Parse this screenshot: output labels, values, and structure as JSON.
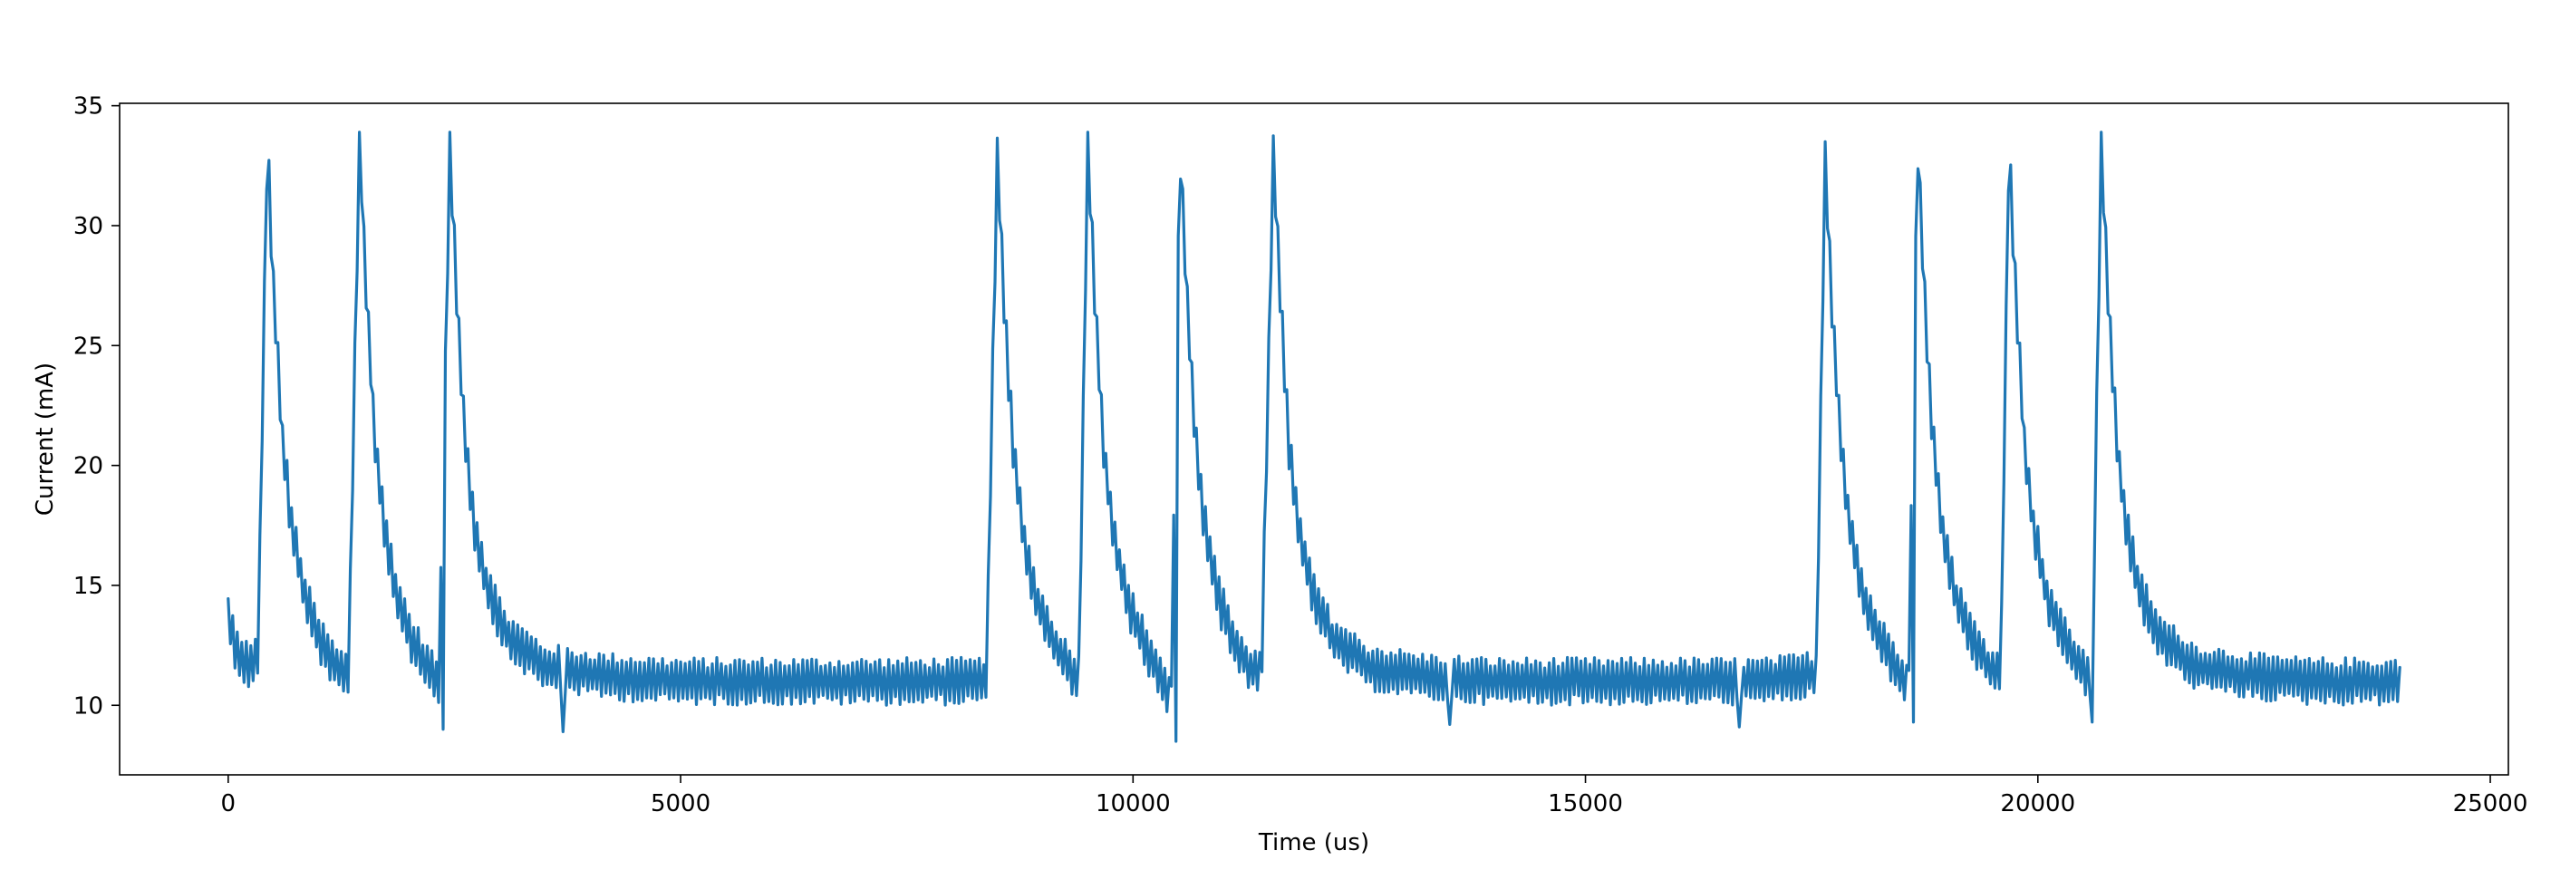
{
  "chart_data": {
    "type": "line",
    "title": "",
    "xlabel": "Time (us)",
    "ylabel": "Current (mA)",
    "xlim": [
      -1200,
      25200
    ],
    "ylim": [
      7.1,
      35.1
    ],
    "xticks": [
      0,
      5000,
      10000,
      15000,
      20000,
      25000
    ],
    "yticks": [
      10,
      15,
      20,
      25,
      30,
      35
    ],
    "grid": false,
    "line_color": "#1f77b4",
    "sample_interval_us": 25,
    "noise_amplitude_mA": 1,
    "baseline_mA": 11,
    "series": [
      {
        "envelope": [
          {
            "x": 0,
            "y": 13.6
          },
          {
            "x": 100,
            "y": 12.2
          },
          {
            "x": 250,
            "y": 11.6
          },
          {
            "x": 330,
            "y": 12.0
          },
          {
            "x": 430,
            "y": 33.5
          },
          {
            "x": 500,
            "y": 27.5
          },
          {
            "x": 600,
            "y": 21.0
          },
          {
            "x": 700,
            "y": 17.5
          },
          {
            "x": 850,
            "y": 14.5
          },
          {
            "x": 1000,
            "y": 12.8
          },
          {
            "x": 1200,
            "y": 11.5
          },
          {
            "x": 1330,
            "y": 11.2
          },
          {
            "x": 1450,
            "y": 33.8
          },
          {
            "x": 1520,
            "y": 27.5
          },
          {
            "x": 1620,
            "y": 21.0
          },
          {
            "x": 1720,
            "y": 17.5
          },
          {
            "x": 1870,
            "y": 14.5
          },
          {
            "x": 2020,
            "y": 12.8
          },
          {
            "x": 2220,
            "y": 11.5
          },
          {
            "x": 2330,
            "y": 11.0
          },
          {
            "x": 2450,
            "y": 33.5
          },
          {
            "x": 2520,
            "y": 27.5
          },
          {
            "x": 2620,
            "y": 21.0
          },
          {
            "x": 2720,
            "y": 17.5
          },
          {
            "x": 2870,
            "y": 14.8
          },
          {
            "x": 3100,
            "y": 12.8
          },
          {
            "x": 3500,
            "y": 11.6
          },
          {
            "x": 4200,
            "y": 11.2
          },
          {
            "x": 5000,
            "y": 11.0
          },
          {
            "x": 8300,
            "y": 11.0
          },
          {
            "x": 8380,
            "y": 11.2
          },
          {
            "x": 8500,
            "y": 32.9
          },
          {
            "x": 8570,
            "y": 27.0
          },
          {
            "x": 8670,
            "y": 21.0
          },
          {
            "x": 8770,
            "y": 17.5
          },
          {
            "x": 8920,
            "y": 14.5
          },
          {
            "x": 9100,
            "y": 12.8
          },
          {
            "x": 9300,
            "y": 11.5
          },
          {
            "x": 9400,
            "y": 11.2
          },
          {
            "x": 9500,
            "y": 33.5
          },
          {
            "x": 9570,
            "y": 27.5
          },
          {
            "x": 9670,
            "y": 21.0
          },
          {
            "x": 9770,
            "y": 17.5
          },
          {
            "x": 9920,
            "y": 14.5
          },
          {
            "x": 10100,
            "y": 12.8
          },
          {
            "x": 10300,
            "y": 11.2
          },
          {
            "x": 10420,
            "y": 10.2
          },
          {
            "x": 10520,
            "y": 33.3
          },
          {
            "x": 10590,
            "y": 27.5
          },
          {
            "x": 10690,
            "y": 21.0
          },
          {
            "x": 10790,
            "y": 17.5
          },
          {
            "x": 10940,
            "y": 14.5
          },
          {
            "x": 11100,
            "y": 12.8
          },
          {
            "x": 11300,
            "y": 11.5
          },
          {
            "x": 11420,
            "y": 11.2
          },
          {
            "x": 11550,
            "y": 33.1
          },
          {
            "x": 11620,
            "y": 27.5
          },
          {
            "x": 11720,
            "y": 21.0
          },
          {
            "x": 11820,
            "y": 17.5
          },
          {
            "x": 11970,
            "y": 14.8
          },
          {
            "x": 12200,
            "y": 12.8
          },
          {
            "x": 12600,
            "y": 11.6
          },
          {
            "x": 13200,
            "y": 11.2
          },
          {
            "x": 14000,
            "y": 11.0
          },
          {
            "x": 17000,
            "y": 11.0
          },
          {
            "x": 17550,
            "y": 11.3
          },
          {
            "x": 17650,
            "y": 32.9
          },
          {
            "x": 17720,
            "y": 27.0
          },
          {
            "x": 17820,
            "y": 21.0
          },
          {
            "x": 17920,
            "y": 17.5
          },
          {
            "x": 18070,
            "y": 14.5
          },
          {
            "x": 18250,
            "y": 12.8
          },
          {
            "x": 18450,
            "y": 11.5
          },
          {
            "x": 18570,
            "y": 11.0
          },
          {
            "x": 18670,
            "y": 33.5
          },
          {
            "x": 18740,
            "y": 27.5
          },
          {
            "x": 18840,
            "y": 21.0
          },
          {
            "x": 18940,
            "y": 17.5
          },
          {
            "x": 19090,
            "y": 14.5
          },
          {
            "x": 19270,
            "y": 12.8
          },
          {
            "x": 19470,
            "y": 11.5
          },
          {
            "x": 19590,
            "y": 11.2
          },
          {
            "x": 19680,
            "y": 33.5
          },
          {
            "x": 19750,
            "y": 27.5
          },
          {
            "x": 19850,
            "y": 21.0
          },
          {
            "x": 19950,
            "y": 17.5
          },
          {
            "x": 20100,
            "y": 14.5
          },
          {
            "x": 20280,
            "y": 12.8
          },
          {
            "x": 20480,
            "y": 11.5
          },
          {
            "x": 20600,
            "y": 11.2
          },
          {
            "x": 20700,
            "y": 33.5
          },
          {
            "x": 20770,
            "y": 27.5
          },
          {
            "x": 20870,
            "y": 21.0
          },
          {
            "x": 20970,
            "y": 17.5
          },
          {
            "x": 21120,
            "y": 14.8
          },
          {
            "x": 21350,
            "y": 12.8
          },
          {
            "x": 21750,
            "y": 11.6
          },
          {
            "x": 22400,
            "y": 11.2
          },
          {
            "x": 23000,
            "y": 11.0
          },
          {
            "x": 24000,
            "y": 11.0
          }
        ],
        "spikes": [
          {
            "x": 2380,
            "y": 9.0
          },
          {
            "x": 3700,
            "y": 8.9
          },
          {
            "x": 10480,
            "y": 8.5
          },
          {
            "x": 13500,
            "y": 9.2
          },
          {
            "x": 16700,
            "y": 9.1
          },
          {
            "x": 18630,
            "y": 9.3
          },
          {
            "x": 20600,
            "y": 9.3
          }
        ]
      }
    ]
  }
}
